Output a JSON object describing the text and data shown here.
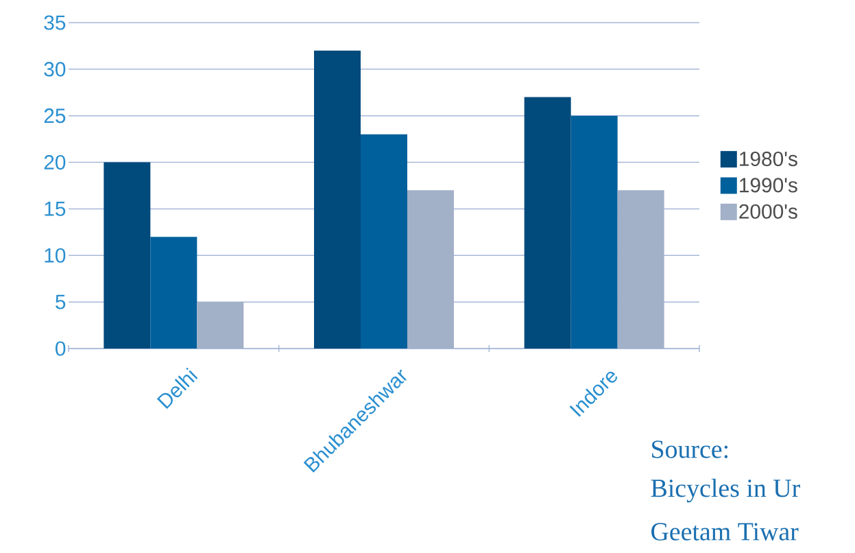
{
  "chart_data": {
    "type": "bar",
    "categories": [
      "Delhi",
      "Bhubaneshwar",
      "Indore"
    ],
    "series": [
      {
        "name": "1980's",
        "color": "#004a7c",
        "values": [
          20,
          32,
          27
        ]
      },
      {
        "name": "1990's",
        "color": "#00609c",
        "values": [
          12,
          23,
          25
        ]
      },
      {
        "name": "2000's",
        "color": "#a2b0c8",
        "values": [
          5,
          17,
          17
        ]
      }
    ],
    "ylim": [
      0,
      35
    ],
    "yticks": [
      0,
      5,
      10,
      15,
      20,
      25,
      30,
      35
    ],
    "grid": "y",
    "legend": "right",
    "annotations": [
      "Source:",
      "Bicycles in Ur",
      "Geetam Tiwar"
    ]
  }
}
